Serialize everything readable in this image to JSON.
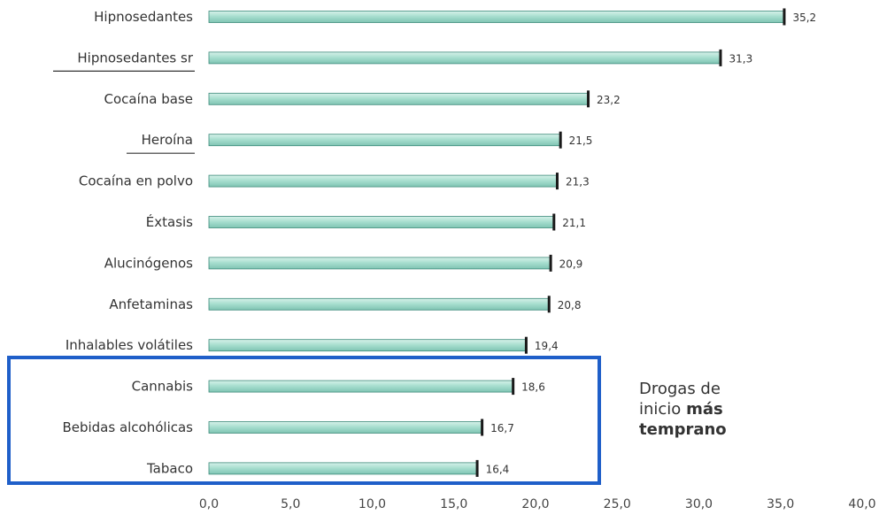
{
  "chart_data": {
    "type": "bar",
    "orientation": "horizontal",
    "categories": [
      "Hipnosedantes",
      "Hipnosedantes sr",
      "Cocaína base",
      "Heroína",
      "Cocaína en polvo",
      "Éxtasis",
      "Alucinógenos",
      "Anfetaminas",
      "Inhalables volátiles",
      "Cannabis",
      "Bebidas alcohólicas",
      "Tabaco"
    ],
    "values": [
      35.2,
      31.3,
      23.2,
      21.5,
      21.3,
      21.1,
      20.9,
      20.8,
      19.4,
      18.6,
      16.7,
      16.4
    ],
    "value_labels": [
      "35,2",
      "31,3",
      "23,2",
      "21,5",
      "21,3",
      "21,1",
      "20,9",
      "20,8",
      "19,4",
      "18,6",
      "16,7",
      "16,4"
    ],
    "xlim": [
      0,
      40
    ],
    "x_ticks": [
      0,
      5,
      10,
      15,
      20,
      25,
      30,
      35,
      40
    ],
    "x_tick_labels": [
      "0,0",
      "5,0",
      "10,0",
      "15,0",
      "20,0",
      "25,0",
      "30,0",
      "35,0",
      "40,0"
    ],
    "underlined_categories": [
      "Hipnosedantes sr",
      "Heroína"
    ],
    "highlight": {
      "categories": [
        "Cannabis",
        "Bebidas alcohólicas",
        "Tabaco"
      ],
      "color": "#1f5fc9"
    },
    "bar_color": "#a9dfd0",
    "bar_edge_color": "#3c8a7a",
    "grid": false
  },
  "annotation": {
    "line1": "Drogas de",
    "line2_prefix": "inicio",
    "line2_bold": "más",
    "line3_bold": "temprano"
  }
}
